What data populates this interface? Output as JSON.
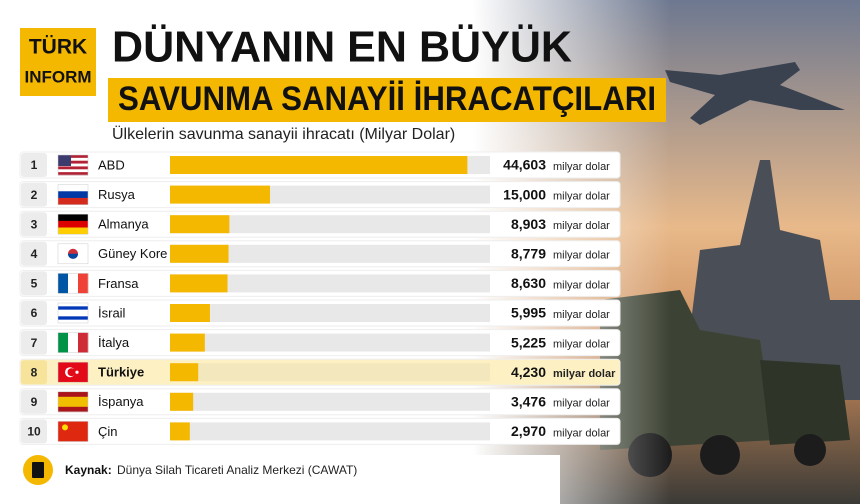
{
  "chart_data": {
    "type": "bar",
    "orientation": "horizontal",
    "brand": [
      "TÜRK",
      "INFORM"
    ],
    "title": [
      "DÜNYANIN EN BÜYÜK",
      "SAVUNMA SANAYİİ İHRACATÇILARI"
    ],
    "subtitle": "Ülkelerin savunma sanayii ihracatı (Milyar Dolar)",
    "ranks": [
      1,
      2,
      3,
      4,
      5,
      6,
      7,
      8,
      9,
      10
    ],
    "categories": [
      "ABD",
      "Rusya",
      "Almanya",
      "Güney Kore",
      "Fransa",
      "İsrail",
      "İtalya",
      "Türkiye",
      "İspanya",
      "Çin"
    ],
    "values": [
      44.603,
      15.0,
      8.903,
      8.779,
      8.63,
      5.995,
      5.225,
      4.23,
      3.476,
      2.97
    ],
    "value_labels": [
      "44,603",
      "15,000",
      "8,903",
      "8,779",
      "8,630",
      "5,995",
      "5,225",
      "4,230",
      "3,476",
      "2,970"
    ],
    "unit": "milyar dolar",
    "color": "#f5b800",
    "highlight": "Türkiye",
    "xlim": [
      0,
      48
    ],
    "source_label": "Kaynak:",
    "source": "Dünya Silah Ticareti Analiz Merkezi (CAWAT)"
  }
}
